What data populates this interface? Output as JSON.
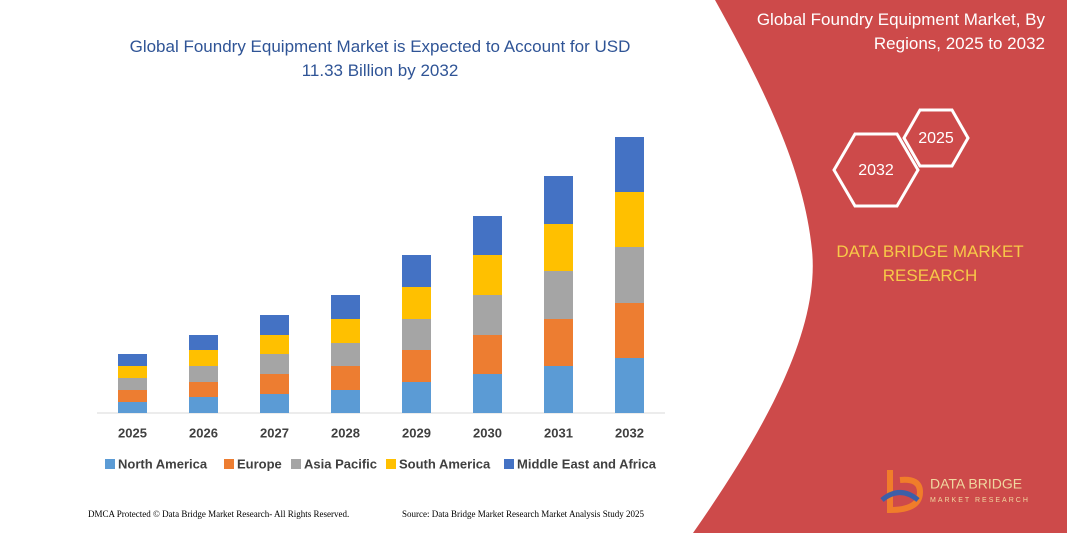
{
  "chart_data": {
    "type": "stacked-bar",
    "title": "Global Foundry Equipment Market is Expected to Account for USD 11.33 Billion by 2032",
    "categories": [
      "2025",
      "2026",
      "2027",
      "2028",
      "2029",
      "2030",
      "2031",
      "2032"
    ],
    "series": [
      {
        "name": "North America",
        "color": "#5b9bd5",
        "values": [
          11,
          16,
          19,
          23,
          31,
          39,
          47,
          55
        ]
      },
      {
        "name": "Europe",
        "color": "#ed7d31",
        "values": [
          12,
          15,
          20,
          24,
          32,
          39,
          47,
          55
        ]
      },
      {
        "name": "Asia Pacific",
        "color": "#a5a5a5",
        "values": [
          12,
          16,
          20,
          23,
          31,
          40,
          48,
          56
        ]
      },
      {
        "name": "South America",
        "color": "#ffc000",
        "values": [
          12,
          16,
          19,
          24,
          32,
          40,
          47,
          55
        ]
      },
      {
        "name": "Middle East and Africa",
        "color": "#4472c4",
        "values": [
          12,
          15,
          20,
          24,
          32,
          39,
          48,
          55
        ]
      }
    ]
  },
  "panel": {
    "title": "Global Foundry Equipment Market, By Regions, 2025 to 2032",
    "hex_small": "2025",
    "hex_large": "2032",
    "brand": "DATA BRIDGE MARKET RESEARCH",
    "logo_name": "DATA BRIDGE",
    "logo_sub": "MARKET RESEARCH"
  },
  "footer": {
    "left": "DMCA Protected © Data Bridge Market Research- All Rights Reserved.",
    "right": "Source: Data Bridge Market Research  Market Analysis Study 2025"
  }
}
